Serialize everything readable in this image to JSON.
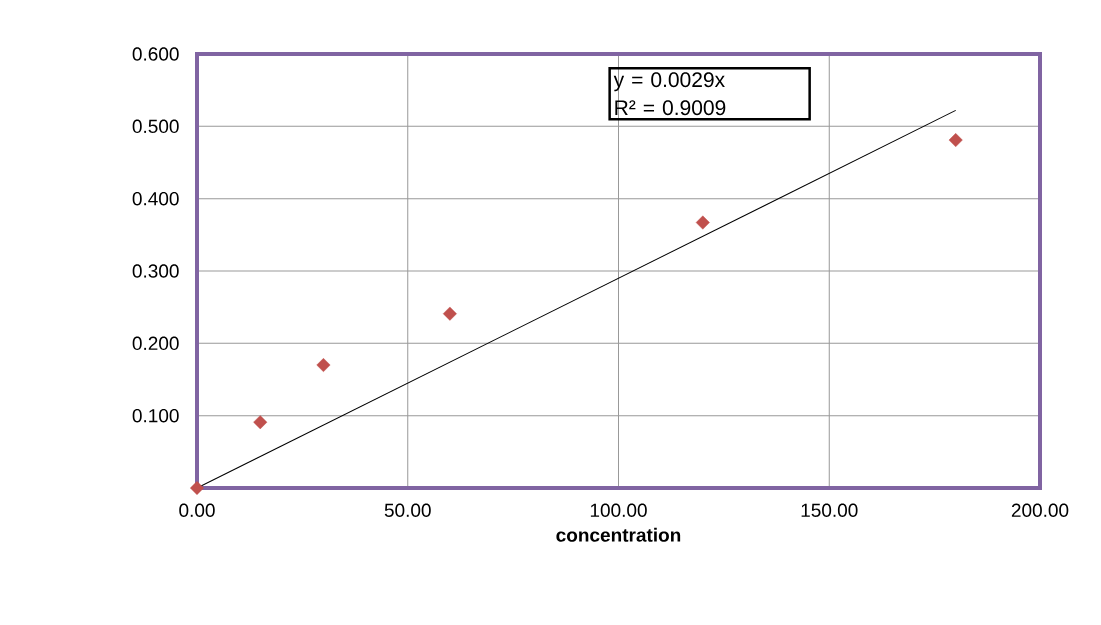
{
  "chart_data": {
    "type": "scatter",
    "xlabel": "concentration",
    "x": [
      0,
      15,
      30,
      60,
      120,
      180
    ],
    "series": [
      {
        "color": "#c0504d",
        "marker": "diamond",
        "values": [
          0.0,
          0.091,
          0.17,
          0.241,
          0.367,
          0.481
        ]
      },
      {
        "type": "line",
        "color": "#000000",
        "marker": "none",
        "x": [
          0,
          180
        ],
        "values": [
          0,
          0.522
        ]
      }
    ],
    "annotations": [
      "y = 0.0029x",
      "R² = 0.9009"
    ],
    "xlim": [
      0,
      200
    ],
    "xticks": [
      {
        "value": 0,
        "label": "0.00"
      },
      {
        "value": 50,
        "label": "50.00"
      },
      {
        "value": 100,
        "label": "100.00"
      },
      {
        "value": 150,
        "label": "150.00"
      },
      {
        "value": 200,
        "label": "200.00"
      }
    ],
    "ylim": [
      0,
      0.6
    ],
    "yticks": [
      {
        "value": 0,
        "label": null
      },
      {
        "value": 0.1,
        "label": "0.100"
      },
      {
        "value": 0.2,
        "label": "0.200"
      },
      {
        "value": 0.3,
        "label": "0.300"
      },
      {
        "value": 0.4,
        "label": "0.400"
      },
      {
        "value": 0.5,
        "label": "0.500"
      },
      {
        "value": 0.6,
        "label": "0.600"
      }
    ],
    "grid": true
  }
}
